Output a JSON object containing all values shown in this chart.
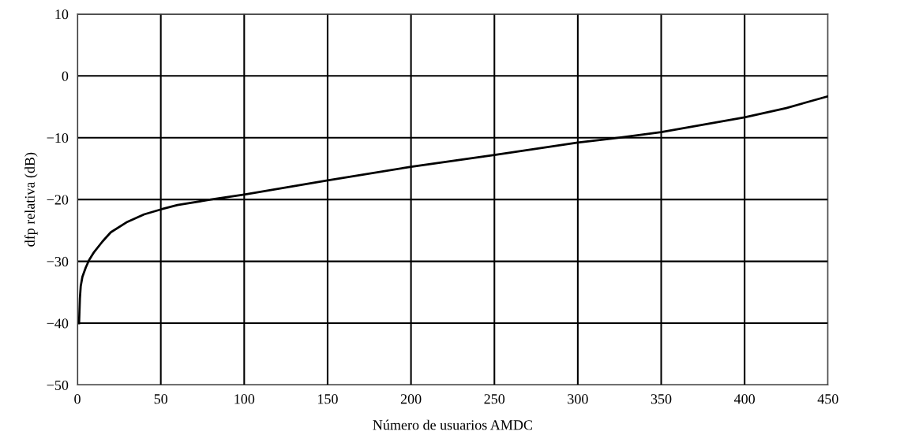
{
  "chart_data": {
    "type": "line",
    "xlabel": "Número de usuarios AMDC",
    "ylabel": "dfp relativa (dB)",
    "x": [
      1,
      1.5,
      2,
      3,
      5,
      7,
      10,
      15,
      20,
      30,
      40,
      50,
      60,
      80,
      100,
      150,
      200,
      250,
      300,
      325,
      350,
      400,
      425,
      450
    ],
    "series": [
      {
        "color": "#000000",
        "values": [
          -40,
          -36,
          -34,
          -32.5,
          -31,
          -29.8,
          -28.5,
          -26.8,
          -25.3,
          -23.6,
          -22.4,
          -21.6,
          -20.9,
          -20,
          -19.2,
          -16.9,
          -14.7,
          -12.8,
          -10.8,
          -10,
          -9.1,
          -6.7,
          -5.2,
          -3.3
        ]
      }
    ],
    "xlim": [
      0,
      450
    ],
    "ylim": [
      -50,
      10
    ],
    "xticks": [
      0,
      50,
      100,
      150,
      200,
      250,
      300,
      350,
      400,
      450
    ],
    "yticks": [
      {
        "value": -50,
        "label": "−50"
      },
      {
        "value": -40,
        "label": "−40"
      },
      {
        "value": -30,
        "label": "−30"
      },
      {
        "value": -20,
        "label": "−20"
      },
      {
        "value": -10,
        "label": "−10"
      },
      0,
      10
    ],
    "grid": true,
    "marker": "none",
    "line_style": "solid"
  }
}
